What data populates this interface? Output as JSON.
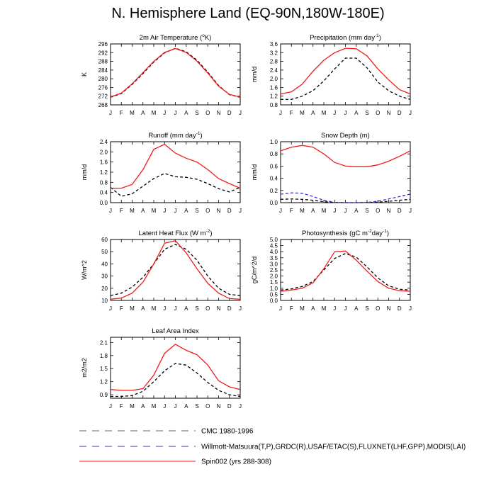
{
  "title": "N. Hemisphere Land (EQ-90N,180W-180E)",
  "months": [
    "J",
    "F",
    "M",
    "A",
    "M",
    "J",
    "J",
    "A",
    "S",
    "O",
    "N",
    "D",
    "J"
  ],
  "colors": {
    "obs": "#000000",
    "obs2": "#3333cc",
    "model": "#ee1c1c"
  },
  "legend": [
    {
      "label": "CMC 1980-1996",
      "color": "#666666"
    },
    {
      "label": "Willmott-Matsuura(T,P),GRDC(R),USAF/ETAC(S),FLUXNET(LHF,GPP),MODIS(LAI)",
      "color": "#3333cc"
    },
    {
      "label": "Spin002 (yrs 288-308)",
      "color": "#ee1c1c"
    }
  ],
  "chart_data": [
    {
      "type": "line",
      "title": "2m Air Temperature (",
      "title_super": "o",
      "title_after": "K)",
      "ylabel": "K",
      "ylim": [
        268,
        296
      ],
      "yticks": [
        "268",
        "272",
        "276",
        "280",
        "284",
        "288",
        "292",
        "296"
      ],
      "series": [
        {
          "name": "Willmott-Matsuura",
          "style": "dash",
          "color": "#000000",
          "values": [
            271.5,
            273.2,
            277.4,
            282.4,
            287.7,
            291.9,
            294.0,
            292.4,
            288.5,
            283.0,
            276.9,
            272.7,
            271.5
          ]
        },
        {
          "name": "Spin002",
          "style": "solid",
          "color": "#ee1c1c",
          "values": [
            271.6,
            273.4,
            277.7,
            282.8,
            288.0,
            292.1,
            293.9,
            292.1,
            288.1,
            282.6,
            276.6,
            272.8,
            271.6
          ]
        }
      ]
    },
    {
      "type": "line",
      "title": "Precipitation (mm day",
      "title_super": "-1",
      "title_after": ")",
      "ylabel": "mm/d",
      "ylim": [
        0.8,
        3.6
      ],
      "yticks": [
        "0.8",
        "1.2",
        "1.6",
        "2.0",
        "2.4",
        "2.8",
        "3.2",
        "3.6"
      ],
      "series": [
        {
          "name": "Willmott-Matsuura",
          "style": "dash",
          "color": "#000000",
          "values": [
            1.05,
            1.05,
            1.2,
            1.45,
            1.9,
            2.45,
            2.95,
            2.95,
            2.5,
            1.85,
            1.45,
            1.2,
            1.05
          ]
        },
        {
          "name": "Spin002",
          "style": "solid",
          "color": "#ee1c1c",
          "values": [
            1.3,
            1.4,
            1.75,
            2.35,
            2.85,
            3.2,
            3.4,
            3.38,
            3.05,
            2.45,
            1.95,
            1.5,
            1.3
          ]
        }
      ]
    },
    {
      "type": "line",
      "title": "Runoff (mm day",
      "title_super": "-1",
      "title_after": ")",
      "ylabel": "mm/d",
      "ylim": [
        0.0,
        2.4
      ],
      "yticks": [
        "0.0",
        "0.4",
        "0.8",
        "1.2",
        "1.6",
        "2.0",
        "2.4"
      ],
      "series": [
        {
          "name": "GRDC",
          "style": "dash",
          "color": "#000000",
          "values": [
            0.6,
            0.25,
            0.35,
            0.65,
            0.95,
            1.15,
            1.02,
            1.0,
            0.92,
            0.75,
            0.55,
            0.42,
            0.6
          ]
        },
        {
          "name": "Spin002",
          "style": "solid",
          "color": "#ee1c1c",
          "values": [
            0.57,
            0.57,
            0.72,
            1.3,
            2.1,
            2.3,
            1.95,
            1.75,
            1.6,
            1.3,
            0.95,
            0.75,
            0.57
          ]
        }
      ]
    },
    {
      "type": "line",
      "title": "Snow Depth (m)",
      "title_super": "",
      "title_after": "",
      "ylabel": "mm/d",
      "ylim": [
        0.0,
        1.0
      ],
      "yticks": [
        "0.0",
        "0.2",
        "0.4",
        "0.6",
        "0.8",
        "1.0"
      ],
      "series": [
        {
          "name": "CMC 1980-1996",
          "style": "dash",
          "color": "#000000",
          "values": [
            0.055,
            0.06,
            0.055,
            0.04,
            0.015,
            0.003,
            0.0,
            0.0,
            0.002,
            0.008,
            0.022,
            0.04,
            0.055
          ]
        },
        {
          "name": "USAF/ETAC",
          "style": "dash",
          "color": "#3333cc",
          "values": [
            0.14,
            0.16,
            0.155,
            0.1,
            0.04,
            0.005,
            0.0,
            0.0,
            0.003,
            0.025,
            0.06,
            0.1,
            0.14
          ]
        },
        {
          "name": "Spin002",
          "style": "solid",
          "color": "#ee1c1c",
          "values": [
            0.85,
            0.91,
            0.94,
            0.91,
            0.8,
            0.66,
            0.6,
            0.59,
            0.59,
            0.62,
            0.68,
            0.76,
            0.85
          ]
        }
      ]
    },
    {
      "type": "line",
      "title": "Latent Heat Flux (W m",
      "title_super": "-2",
      "title_after": ")",
      "ylabel": "W/m^2",
      "ylim": [
        10,
        60
      ],
      "yticks": [
        "10",
        "20",
        "30",
        "40",
        "50",
        "60"
      ],
      "series": [
        {
          "name": "FLUXNET",
          "style": "dash",
          "color": "#000000",
          "values": [
            14,
            16,
            21,
            29,
            40,
            52,
            56,
            52,
            43,
            30,
            20,
            15,
            14
          ]
        },
        {
          "name": "Spin002",
          "style": "solid",
          "color": "#ee1c1c",
          "values": [
            11,
            12,
            16,
            25,
            40,
            57,
            59,
            49,
            36,
            24,
            16,
            11.5,
            11
          ]
        }
      ]
    },
    {
      "type": "line",
      "title": "Photosynthesis (gC m",
      "title_super": "-2",
      "title_after": "day",
      "title_super2": "-1",
      "title_after2": ")",
      "ylabel": "gC/m^2/d",
      "ylim": [
        0.0,
        5.0
      ],
      "yticks": [
        "0.0",
        "0.5",
        "1.0",
        "1.5",
        "2.0",
        "2.5",
        "3.0",
        "3.5",
        "4.0",
        "4.5",
        "5.0"
      ],
      "series": [
        {
          "name": "FLUXNET",
          "style": "dash",
          "color": "#000000",
          "values": [
            0.85,
            0.95,
            1.15,
            1.55,
            2.5,
            3.45,
            3.85,
            3.55,
            2.75,
            1.85,
            1.2,
            0.92,
            0.85
          ]
        },
        {
          "name": "Spin002",
          "style": "solid",
          "color": "#ee1c1c",
          "values": [
            0.75,
            0.85,
            1.0,
            1.45,
            2.6,
            4.0,
            4.05,
            3.3,
            2.4,
            1.55,
            1.0,
            0.8,
            0.75
          ]
        }
      ]
    },
    {
      "type": "line",
      "title": "Leaf Area Index",
      "title_super": "",
      "title_after": "",
      "ylabel": "m2/m2",
      "ylim": [
        0.82,
        2.22
      ],
      "yticks": [
        "0.9",
        "1.2",
        "1.5",
        "1.8",
        "2.1"
      ],
      "ytick_values": [
        0.9,
        1.2,
        1.5,
        1.8,
        2.1
      ],
      "series": [
        {
          "name": "MODIS",
          "style": "dash",
          "color": "#000000",
          "values": [
            0.86,
            0.86,
            0.88,
            0.98,
            1.2,
            1.45,
            1.62,
            1.58,
            1.4,
            1.18,
            1.0,
            0.9,
            0.86
          ]
        },
        {
          "name": "Spin002",
          "style": "solid",
          "color": "#ee1c1c",
          "values": [
            1.02,
            1.0,
            1.0,
            1.04,
            1.35,
            1.85,
            2.06,
            1.92,
            1.82,
            1.58,
            1.22,
            1.08,
            1.02
          ]
        }
      ]
    }
  ]
}
